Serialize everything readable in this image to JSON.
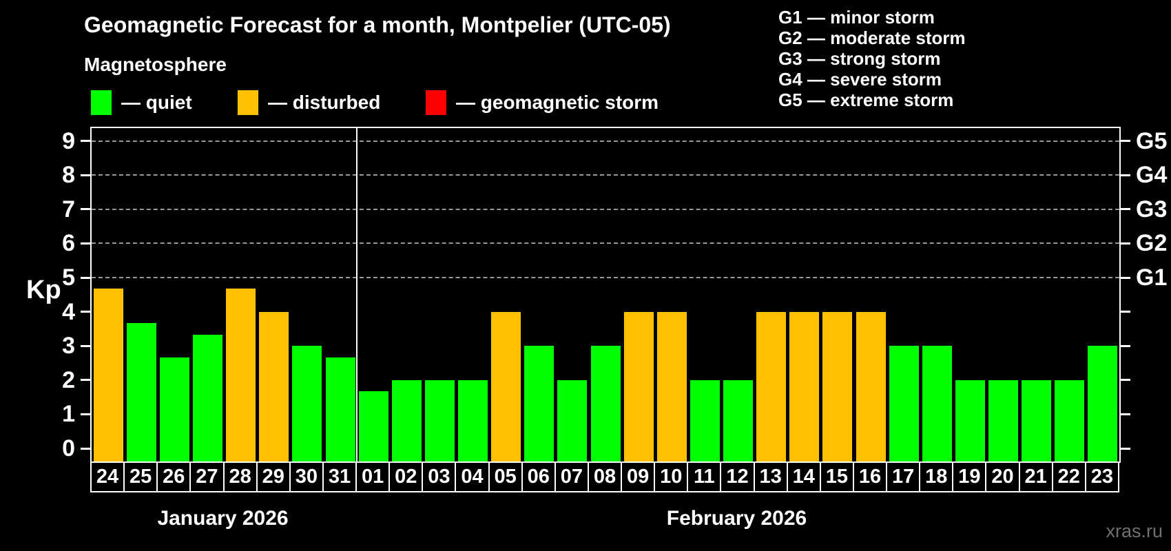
{
  "title": "Geomagnetic Forecast for a month, Montpelier (UTC-05)",
  "subtitle": "Magnetosphere",
  "watermark": "xras.ru",
  "colors": {
    "quiet": "#00ff00",
    "disturbed": "#ffc000",
    "storm": "#ff0000",
    "background": "#000000",
    "grid": "#999999",
    "axis": "#ffffff",
    "watermark": "#707070"
  },
  "legend": [
    {
      "status": "quiet",
      "color": "#00ff00",
      "label": "— quiet"
    },
    {
      "status": "disturbed",
      "color": "#ffc000",
      "label": "— disturbed"
    },
    {
      "status": "storm",
      "color": "#ff0000",
      "label": "— geomagnetic storm"
    }
  ],
  "storm_scale": [
    {
      "level": "G1",
      "label": "G1 — minor storm"
    },
    {
      "level": "G2",
      "label": "G2 — moderate storm"
    },
    {
      "level": "G3",
      "label": "G3 — strong storm"
    },
    {
      "level": "G4",
      "label": "G4 — severe storm"
    },
    {
      "level": "G5",
      "label": "G5 — extreme storm"
    }
  ],
  "chart_data": {
    "type": "bar",
    "ylabel": "Kp",
    "ylim": [
      -0.38,
      9.38
    ],
    "y_ticks": [
      0,
      1,
      2,
      3,
      4,
      5,
      6,
      7,
      8,
      9
    ],
    "gridlines_at": [
      5,
      6,
      7,
      8,
      9
    ],
    "right_axis_labels": [
      {
        "kp": 5,
        "label": "G1"
      },
      {
        "kp": 6,
        "label": "G2"
      },
      {
        "kp": 7,
        "label": "G3"
      },
      {
        "kp": 8,
        "label": "G4"
      },
      {
        "kp": 9,
        "label": "G5"
      }
    ],
    "months": [
      {
        "label": "January 2026",
        "days": 8
      },
      {
        "label": "February 2026",
        "days": 23
      }
    ],
    "categories": [
      "24",
      "25",
      "26",
      "27",
      "28",
      "29",
      "30",
      "31",
      "01",
      "02",
      "03",
      "04",
      "05",
      "06",
      "07",
      "08",
      "09",
      "10",
      "11",
      "12",
      "13",
      "14",
      "15",
      "16",
      "17",
      "18",
      "19",
      "20",
      "21",
      "22",
      "23"
    ],
    "values": [
      4.67,
      3.67,
      2.67,
      3.33,
      4.67,
      4,
      3,
      2.67,
      1.67,
      2,
      2,
      2,
      4,
      3,
      2,
      3,
      4,
      4,
      2,
      2,
      4,
      4,
      4,
      4,
      3,
      3,
      2,
      2,
      2,
      2,
      3
    ],
    "statuses": [
      "disturbed",
      "quiet",
      "quiet",
      "quiet",
      "disturbed",
      "disturbed",
      "quiet",
      "quiet",
      "quiet",
      "quiet",
      "quiet",
      "quiet",
      "disturbed",
      "quiet",
      "quiet",
      "quiet",
      "disturbed",
      "disturbed",
      "quiet",
      "quiet",
      "disturbed",
      "disturbed",
      "disturbed",
      "disturbed",
      "quiet",
      "quiet",
      "quiet",
      "quiet",
      "quiet",
      "quiet",
      "quiet"
    ]
  }
}
